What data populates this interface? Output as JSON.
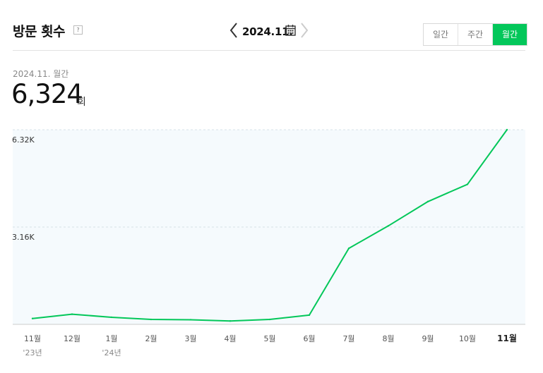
{
  "header": {
    "title": "방문 횟수",
    "help": "?",
    "date": "2024.11.",
    "tabs": [
      {
        "label": "일간",
        "active": false
      },
      {
        "label": "주간",
        "active": false
      },
      {
        "label": "월간",
        "active": true
      }
    ]
  },
  "summary": {
    "period": "2024.11. 월간",
    "value": "6,324",
    "unit": "회"
  },
  "colors": {
    "accent": "#03c75a",
    "line": "#03c75a"
  },
  "chart_data": {
    "type": "line",
    "categories": [
      "11월",
      "12월",
      "1월",
      "2월",
      "3월",
      "4월",
      "5월",
      "6월",
      "7월",
      "8월",
      "9월",
      "10월",
      "11월"
    ],
    "year_labels": [
      "'23년",
      "",
      "'24년",
      "",
      "",
      "",
      "",
      "",
      "",
      "",
      "",
      "",
      ""
    ],
    "current_index": 12,
    "y_tick_labels": [
      "3.16K",
      "6.32K"
    ],
    "y_ticks": [
      3162,
      6324
    ],
    "ylim": [
      0,
      6324
    ],
    "series": [
      {
        "values": [
          190,
          330,
          230,
          160,
          150,
          110,
          160,
          300,
          2470,
          3200,
          3990,
          4550,
          6324
        ]
      }
    ]
  }
}
